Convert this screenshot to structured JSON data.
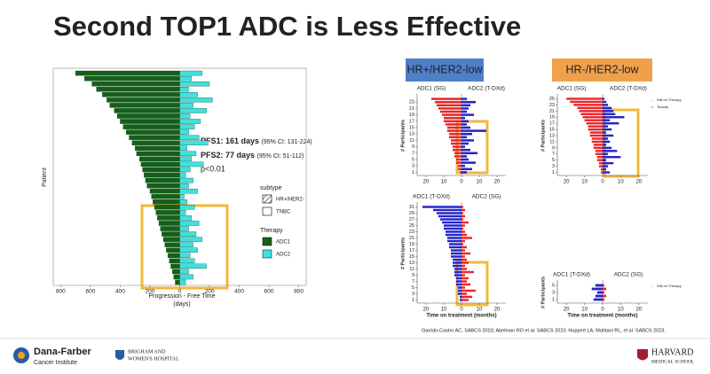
{
  "title": "Second TOP1 ADC is Less Effective",
  "chart_data": [
    {
      "type": "diverging-bar",
      "x_label": "Progression - Free Time",
      "x_label_unit": "(days)",
      "y_label": "Patient",
      "annotations": {
        "pfs1": "PFS1: 161 days",
        "pfs1_ci": "(95% CI: 131-224)",
        "pfs2": "PFS2: 77 days",
        "pfs2_ci": "(95% CI: 51-112)",
        "p": "p<0.01"
      },
      "legend": {
        "subtype_title": "subtype",
        "subtype_items": [
          "HR+/HER2-",
          "TNBC"
        ],
        "therapy_title": "Therapy"
      },
      "xlim": [
        -850,
        850
      ],
      "xticks": [
        {
          "value": -800,
          "label": "800"
        },
        {
          "value": -600,
          "label": "600"
        },
        {
          "value": -400,
          "label": "400"
        },
        {
          "value": -200,
          "label": "200"
        },
        0,
        200,
        400,
        600,
        800
      ],
      "series": [
        {
          "name": "ADC1",
          "color": "#14601a",
          "values": [
            -700,
            -640,
            -590,
            -560,
            -520,
            -490,
            -470,
            -440,
            -420,
            -400,
            -380,
            -360,
            -340,
            -320,
            -300,
            -290,
            -270,
            -260,
            -250,
            -240,
            -230,
            -220,
            -200,
            -190,
            -180,
            -170,
            -160,
            -150,
            -140,
            -130,
            -120,
            -110,
            -100,
            -90,
            -80,
            -70,
            -60,
            -50,
            -40,
            -30
          ]
        },
        {
          "name": "ADC2",
          "color": "#3fe0e0",
          "values": [
            150,
            80,
            200,
            60,
            120,
            220,
            90,
            180,
            70,
            140,
            100,
            60,
            130,
            190,
            50,
            110,
            80,
            160,
            70,
            40,
            90,
            60,
            120,
            30,
            50,
            100,
            40,
            80,
            130,
            60,
            110,
            150,
            90,
            120,
            70,
            100,
            180,
            60,
            90,
            40
          ]
        }
      ]
    },
    {
      "type": "swimmer",
      "header": "HR+/HER2-low",
      "header_color": "#4f7fc8",
      "y_label": "# Participants",
      "xlim": [
        -25,
        25
      ],
      "xticks": [
        {
          "value": -20,
          "label": "20"
        },
        {
          "value": -10,
          "label": "10"
        },
        0,
        10,
        20
      ],
      "ylim": [
        0,
        25
      ],
      "yticks": [
        1,
        3,
        5,
        7,
        9,
        11,
        13,
        15,
        17,
        19,
        21,
        23
      ],
      "series": [
        {
          "name": "ADC1 (SG)",
          "color": "#e8262a",
          "values": [
            -1,
            -2,
            -2,
            -3,
            -3,
            -4,
            -4,
            -5,
            -5,
            -6,
            -6,
            -7,
            -7,
            -8,
            -8,
            -9,
            -10,
            -10,
            -11,
            -12,
            -13,
            -14,
            -15,
            -17
          ]
        },
        {
          "name": "ADC2 (T-DXd)",
          "color": "#2424c8",
          "values": [
            3,
            6,
            2,
            8,
            4,
            3,
            9,
            5,
            2,
            4,
            7,
            3,
            6,
            14,
            5,
            3,
            4,
            2,
            7,
            3,
            4,
            5,
            8,
            3
          ]
        }
      ]
    },
    {
      "type": "swimmer",
      "header": "HR-/HER2-low",
      "header_color": "#f0a04b",
      "y_label": "# Participants",
      "legend_items": [
        "Still on Therapy",
        "Toxicity"
      ],
      "xlim": [
        -25,
        25
      ],
      "xticks": [
        {
          "value": -20,
          "label": "20"
        },
        {
          "value": -10,
          "label": "10"
        },
        0,
        10,
        20
      ],
      "ylim": [
        0,
        26
      ],
      "yticks": [
        1,
        3,
        5,
        7,
        9,
        11,
        13,
        15,
        17,
        19,
        21,
        23,
        25
      ],
      "series": [
        {
          "name": "ADC1 (SG)",
          "color": "#e8262a",
          "values": [
            -1,
            -1,
            -2,
            -2,
            -3,
            -3,
            -4,
            -4,
            -5,
            -5,
            -6,
            -6,
            -7,
            -7,
            -8,
            -8,
            -9,
            -10,
            -11,
            -12,
            -13,
            -14,
            -16,
            -18,
            -20
          ]
        },
        {
          "name": "ADC2 (T-DXd)",
          "color": "#2424c8",
          "values": [
            4,
            2,
            3,
            6,
            2,
            10,
            3,
            8,
            5,
            2,
            4,
            3,
            6,
            2,
            5,
            3,
            9,
            4,
            12,
            7,
            6,
            5,
            3,
            2,
            1
          ]
        }
      ]
    },
    {
      "type": "swimmer",
      "y_label": "# Participants",
      "x_label": "Time on treatment (months)",
      "xlim": [
        -25,
        25
      ],
      "xticks": [
        {
          "value": -20,
          "label": "20"
        },
        {
          "value": -10,
          "label": "10"
        },
        0,
        10,
        20
      ],
      "ylim": [
        0,
        32
      ],
      "yticks": [
        1,
        3,
        5,
        7,
        9,
        11,
        13,
        15,
        17,
        19,
        21,
        23,
        25,
        27,
        29,
        31
      ],
      "series": [
        {
          "name": "ADC1 (T-DXd)",
          "color": "#2424c8",
          "values": [
            -1,
            -1,
            -2,
            -2,
            -2,
            -3,
            -3,
            -3,
            -4,
            -4,
            -4,
            -5,
            -5,
            -5,
            -6,
            -6,
            -6,
            -7,
            -7,
            -8,
            -8,
            -9,
            -9,
            -10,
            -10,
            -11,
            -12,
            -13,
            -14,
            -16,
            -22
          ]
        },
        {
          "name": "ADC2 (SG)",
          "color": "#e8262a",
          "values": [
            4,
            6,
            3,
            8,
            2,
            5,
            3,
            4,
            2,
            7,
            3,
            2,
            4,
            3,
            2,
            5,
            2,
            3,
            1,
            2,
            6,
            3,
            2,
            1,
            2,
            4,
            1,
            2,
            1,
            2,
            1
          ]
        }
      ]
    },
    {
      "type": "swimmer",
      "y_label": "# Participants",
      "x_label": "Time on treatment (months)",
      "legend_items": [
        "Still on Therapy"
      ],
      "xlim": [
        -25,
        25
      ],
      "xticks": [
        {
          "value": -20,
          "label": "20"
        },
        {
          "value": -10,
          "label": "10"
        },
        0,
        10,
        20
      ],
      "ylim": [
        0,
        6
      ],
      "yticks": [
        1,
        3,
        5
      ],
      "series": [
        {
          "name": "ADC1 (T-DXd)",
          "color": "#2424c8",
          "values": [
            -5,
            -4,
            -3,
            -6,
            -4
          ]
        },
        {
          "name": "ADC2 (SG)",
          "color": "#e8262a",
          "values": [
            1,
            2,
            1,
            2,
            1
          ]
        }
      ]
    }
  ],
  "citation": "Garrido-Castro AC, SABCS 2023; Abelman RO et al. SABCS 2023; Huppert LA, Mahtani RL, et al. SABCS 2023.",
  "logos": {
    "dfci": [
      "Dana-Farber",
      "Cancer Institute"
    ],
    "bwh": [
      "BRIGHAM AND",
      "WOMEN'S HOSPITAL"
    ],
    "harvard": [
      "HARVARD",
      "MEDICAL SCHOOL"
    ]
  }
}
